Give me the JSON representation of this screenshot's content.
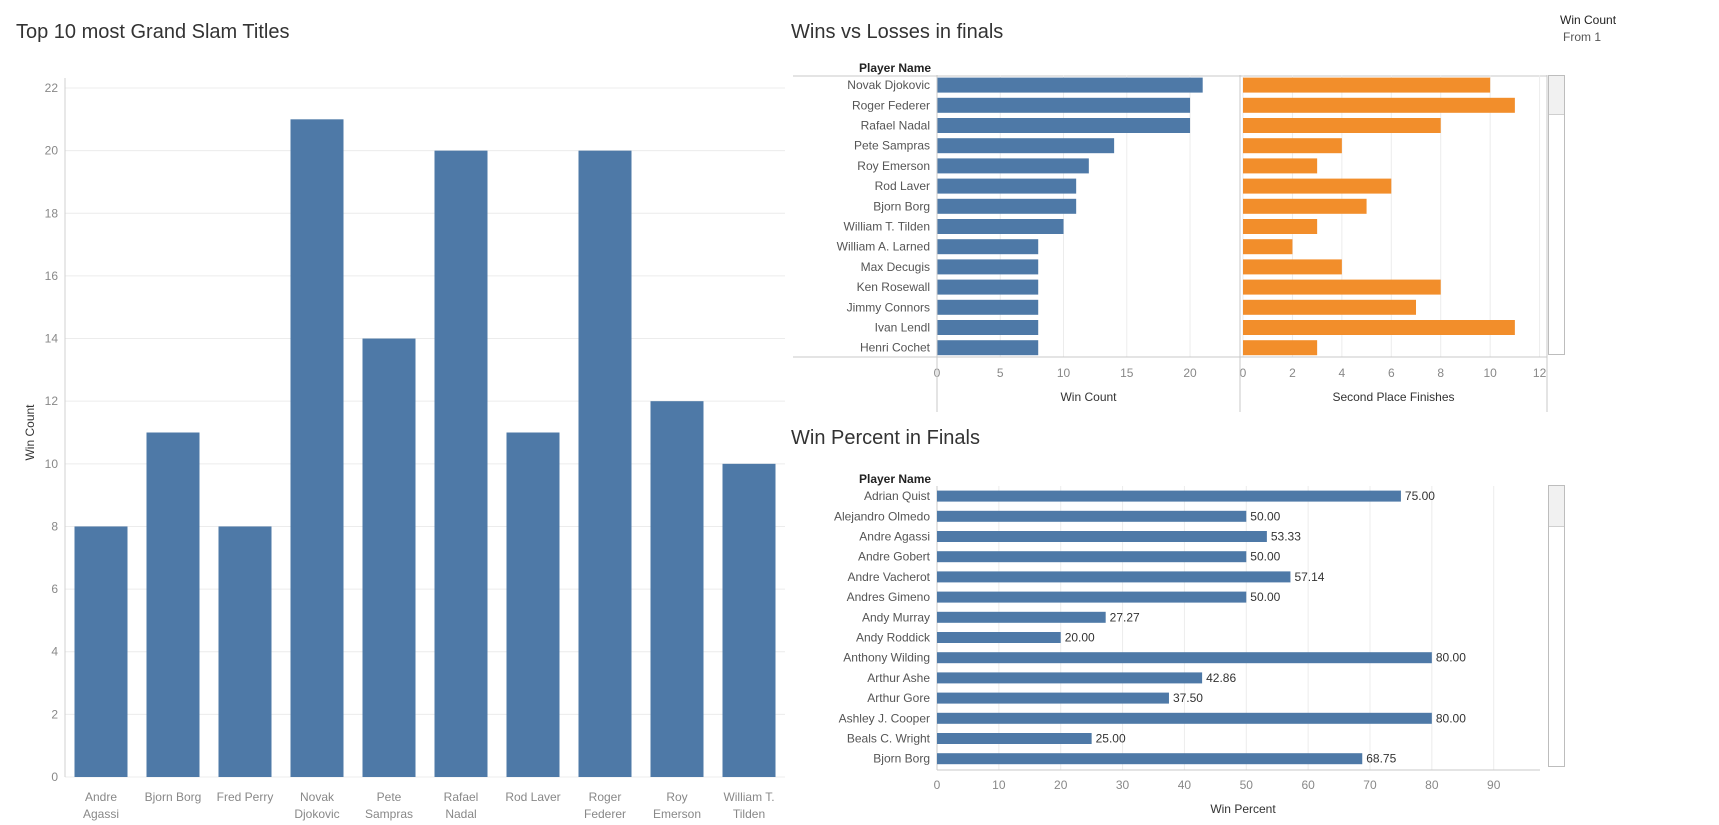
{
  "titles": {
    "chart1": "Top 10 most Grand Slam Titles",
    "chart2": "Wins vs Losses in finals",
    "chart3": "Win Percent in Finals"
  },
  "filter": {
    "label": "Win Count",
    "value": "From 1"
  },
  "colors": {
    "blue": "#4e79a7",
    "orange": "#f28e2b",
    "grid": "#ececec",
    "axis": "#888888"
  },
  "chart_data": [
    {
      "type": "bar",
      "title": "Top 10 most Grand Slam Titles",
      "ylabel": "Win Count",
      "xlabel": "",
      "ylim": [
        0,
        22
      ],
      "yticks": [
        0,
        2,
        4,
        6,
        8,
        10,
        12,
        14,
        16,
        18,
        20,
        22
      ],
      "categories": [
        [
          "Andre",
          "Agassi"
        ],
        [
          "Bjorn Borg"
        ],
        [
          "Fred Perry"
        ],
        [
          "Novak",
          "Djokovic"
        ],
        [
          "Pete",
          "Sampras"
        ],
        [
          "Rafael",
          "Nadal"
        ],
        [
          "Rod Laver"
        ],
        [
          "Roger",
          "Federer"
        ],
        [
          "Roy",
          "Emerson"
        ],
        [
          "William T.",
          "Tilden"
        ]
      ],
      "values": [
        8,
        11,
        8,
        21,
        14,
        20,
        11,
        20,
        12,
        10
      ]
    },
    {
      "type": "bar",
      "orientation": "horizontal",
      "title": "Wins vs Losses in finals",
      "row_header": "Player Name",
      "categories": [
        "Novak Djokovic",
        "Roger Federer",
        "Rafael Nadal",
        "Pete Sampras",
        "Roy Emerson",
        "Rod Laver",
        "Bjorn Borg",
        "William T. Tilden",
        "William A. Larned",
        "Max Decugis",
        "Ken Rosewall",
        "Jimmy Connors",
        "Ivan Lendl",
        "Henri Cochet"
      ],
      "series": [
        {
          "name": "Win Count",
          "values": [
            21,
            20,
            20,
            14,
            12,
            11,
            11,
            10,
            8,
            8,
            8,
            8,
            8,
            8
          ],
          "xlim": [
            0,
            23
          ],
          "ticks": [
            0,
            5,
            10,
            15,
            20
          ]
        },
        {
          "name": "Second Place Finishes",
          "values": [
            10,
            11,
            8,
            4,
            3,
            6,
            5,
            3,
            2,
            4,
            8,
            7,
            11,
            3
          ],
          "xlim": [
            0,
            12.3
          ],
          "ticks": [
            0,
            2,
            4,
            6,
            8,
            10,
            12
          ]
        }
      ]
    },
    {
      "type": "bar",
      "orientation": "horizontal",
      "title": "Win Percent in Finals",
      "row_header": "Player Name",
      "xlabel": "Win Percent",
      "xlim": [
        0,
        97
      ],
      "xticks": [
        0,
        10,
        20,
        30,
        40,
        50,
        60,
        70,
        80,
        90
      ],
      "categories": [
        "Adrian Quist",
        "Alejandro Olmedo",
        "Andre Agassi",
        "Andre Gobert",
        "Andre Vacherot",
        "Andres Gimeno",
        "Andy Murray",
        "Andy Roddick",
        "Anthony Wilding",
        "Arthur Ashe",
        "Arthur Gore",
        "Ashley J. Cooper",
        "Beals C. Wright",
        "Bjorn Borg"
      ],
      "values": [
        75.0,
        50.0,
        53.33,
        50.0,
        57.14,
        50.0,
        27.27,
        20.0,
        80.0,
        42.86,
        37.5,
        80.0,
        25.0,
        68.75
      ],
      "labels": [
        "75.00",
        "50.00",
        "53.33",
        "50.00",
        "57.14",
        "50.00",
        "27.27",
        "20.00",
        "80.00",
        "42.86",
        "37.50",
        "80.00",
        "25.00",
        "68.75"
      ]
    }
  ]
}
